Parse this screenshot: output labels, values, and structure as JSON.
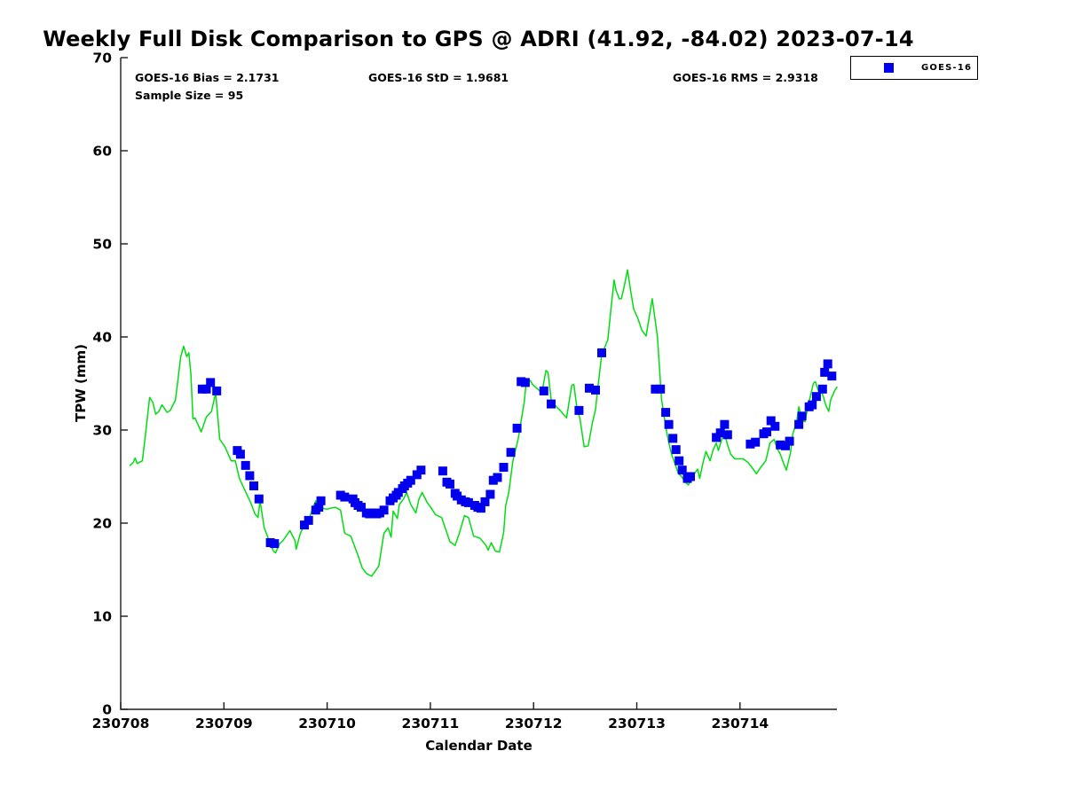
{
  "figure": {
    "stats": {
      "bias_label": "GOES-16 Bias = 2.1731",
      "std_label": "GOES-16 StD = 1.9681",
      "rms_label": "GOES-16 RMS = 2.9318",
      "sample_label": "Sample Size = 95"
    },
    "legend": {
      "entries": [
        {
          "label": "GOES-16",
          "marker": "square",
          "color": "#0000EE"
        }
      ]
    }
  },
  "chart_data": {
    "type": "line",
    "title": "Weekly Full Disk Comparison to GPS @ ADRI (41.92, -84.02) 2023-07-14",
    "xlabel": "Calendar Date",
    "ylabel": "TPW (mm)",
    "x_tick_labels": [
      "230708",
      "230709",
      "230710",
      "230711",
      "230712",
      "230713",
      "230714"
    ],
    "x_unit_note": "x values are days since 230708 00:00 UTC",
    "x_range_days": [
      0,
      6.94
    ],
    "ylim": [
      0,
      70
    ],
    "y_ticks": [
      0,
      10,
      20,
      30,
      40,
      50,
      60,
      70
    ],
    "grid": false,
    "legend_position": "top-right-outside",
    "stats": {
      "bias": 2.1731,
      "std": 1.9681,
      "rms": 2.9318,
      "sample_size": 95
    },
    "series": [
      {
        "name": "GPS",
        "type": "line",
        "color": "#00DD11",
        "points": [
          [
            0.09,
            26.2
          ],
          [
            0.12,
            26.5
          ],
          [
            0.14,
            27.0
          ],
          [
            0.16,
            26.4
          ],
          [
            0.21,
            26.7
          ],
          [
            0.24,
            29.5
          ],
          [
            0.28,
            33.5
          ],
          [
            0.31,
            33.0
          ],
          [
            0.34,
            31.7
          ],
          [
            0.37,
            32.0
          ],
          [
            0.4,
            32.7
          ],
          [
            0.45,
            31.9
          ],
          [
            0.48,
            32.1
          ],
          [
            0.53,
            33.2
          ],
          [
            0.55,
            35.0
          ],
          [
            0.58,
            37.8
          ],
          [
            0.61,
            39.0
          ],
          [
            0.64,
            37.9
          ],
          [
            0.66,
            38.3
          ],
          [
            0.68,
            36.0
          ],
          [
            0.7,
            31.2
          ],
          [
            0.72,
            31.3
          ],
          [
            0.78,
            29.8
          ],
          [
            0.83,
            31.4
          ],
          [
            0.88,
            32.0
          ],
          [
            0.92,
            34.0
          ],
          [
            0.96,
            29.0
          ],
          [
            1.01,
            28.2
          ],
          [
            1.07,
            26.7
          ],
          [
            1.11,
            26.7
          ],
          [
            1.15,
            24.8
          ],
          [
            1.2,
            23.6
          ],
          [
            1.26,
            22.2
          ],
          [
            1.3,
            21.0
          ],
          [
            1.33,
            20.6
          ],
          [
            1.35,
            22.4
          ],
          [
            1.39,
            19.5
          ],
          [
            1.44,
            18.1
          ],
          [
            1.48,
            17.0
          ],
          [
            1.5,
            16.8
          ],
          [
            1.54,
            17.8
          ],
          [
            1.57,
            18.1
          ],
          [
            1.64,
            19.2
          ],
          [
            1.69,
            18.1
          ],
          [
            1.7,
            17.2
          ],
          [
            1.74,
            18.9
          ],
          [
            1.78,
            19.8
          ],
          [
            1.82,
            20.3
          ],
          [
            1.86,
            21.6
          ],
          [
            1.89,
            22.4
          ],
          [
            1.91,
            21.1
          ],
          [
            1.93,
            22.5
          ],
          [
            1.95,
            21.6
          ],
          [
            2.0,
            21.5
          ],
          [
            2.03,
            21.6
          ],
          [
            2.08,
            21.7
          ],
          [
            2.13,
            21.4
          ],
          [
            2.17,
            18.9
          ],
          [
            2.23,
            18.6
          ],
          [
            2.3,
            16.5
          ],
          [
            2.34,
            15.2
          ],
          [
            2.38,
            14.6
          ],
          [
            2.43,
            14.3
          ],
          [
            2.47,
            14.9
          ],
          [
            2.5,
            15.4
          ],
          [
            2.55,
            18.9
          ],
          [
            2.59,
            19.5
          ],
          [
            2.62,
            18.5
          ],
          [
            2.64,
            21.3
          ],
          [
            2.68,
            20.5
          ],
          [
            2.7,
            22.0
          ],
          [
            2.74,
            22.6
          ],
          [
            2.77,
            23.3
          ],
          [
            2.81,
            22.0
          ],
          [
            2.86,
            21.1
          ],
          [
            2.89,
            22.6
          ],
          [
            2.92,
            23.3
          ],
          [
            2.97,
            22.2
          ],
          [
            3.01,
            21.6
          ],
          [
            3.05,
            20.9
          ],
          [
            3.11,
            20.6
          ],
          [
            3.15,
            19.3
          ],
          [
            3.19,
            18.0
          ],
          [
            3.24,
            17.6
          ],
          [
            3.28,
            18.9
          ],
          [
            3.33,
            20.8
          ],
          [
            3.37,
            20.6
          ],
          [
            3.42,
            18.6
          ],
          [
            3.48,
            18.4
          ],
          [
            3.54,
            17.6
          ],
          [
            3.56,
            17.1
          ],
          [
            3.59,
            17.9
          ],
          [
            3.63,
            17.0
          ],
          [
            3.67,
            16.9
          ],
          [
            3.71,
            19.0
          ],
          [
            3.73,
            21.9
          ],
          [
            3.76,
            23.3
          ],
          [
            3.8,
            26.7
          ],
          [
            3.85,
            29.0
          ],
          [
            3.88,
            31.0
          ],
          [
            3.91,
            33.0
          ],
          [
            3.93,
            35.3
          ],
          [
            3.97,
            35.3
          ],
          [
            3.99,
            34.9
          ],
          [
            4.04,
            34.4
          ],
          [
            4.08,
            34.0
          ],
          [
            4.12,
            36.4
          ],
          [
            4.14,
            36.2
          ],
          [
            4.17,
            33.3
          ],
          [
            4.19,
            32.9
          ],
          [
            4.23,
            32.4
          ],
          [
            4.25,
            32.2
          ],
          [
            4.29,
            31.7
          ],
          [
            4.32,
            31.3
          ],
          [
            4.37,
            34.8
          ],
          [
            4.39,
            34.9
          ],
          [
            4.42,
            32.4
          ],
          [
            4.45,
            31.2
          ],
          [
            4.49,
            28.2
          ],
          [
            4.53,
            28.3
          ],
          [
            4.57,
            30.8
          ],
          [
            4.6,
            32.2
          ],
          [
            4.62,
            34.3
          ],
          [
            4.66,
            38.1
          ],
          [
            4.72,
            39.7
          ],
          [
            4.75,
            43.0
          ],
          [
            4.78,
            46.1
          ],
          [
            4.8,
            45.0
          ],
          [
            4.83,
            44.1
          ],
          [
            4.85,
            44.1
          ],
          [
            4.88,
            45.5
          ],
          [
            4.91,
            47.2
          ],
          [
            4.94,
            45.0
          ],
          [
            4.97,
            43.0
          ],
          [
            5.01,
            42.0
          ],
          [
            5.05,
            40.7
          ],
          [
            5.09,
            40.1
          ],
          [
            5.15,
            44.1
          ],
          [
            5.2,
            40.0
          ],
          [
            5.24,
            33.3
          ],
          [
            5.27,
            31.1
          ],
          [
            5.29,
            29.8
          ],
          [
            5.31,
            28.6
          ],
          [
            5.34,
            27.3
          ],
          [
            5.37,
            26.4
          ],
          [
            5.4,
            25.4
          ],
          [
            5.44,
            24.9
          ],
          [
            5.48,
            24.3
          ],
          [
            5.5,
            24.1
          ],
          [
            5.54,
            25.0
          ],
          [
            5.57,
            25.5
          ],
          [
            5.59,
            25.8
          ],
          [
            5.61,
            24.8
          ],
          [
            5.64,
            26.4
          ],
          [
            5.67,
            27.7
          ],
          [
            5.71,
            26.7
          ],
          [
            5.74,
            27.9
          ],
          [
            5.77,
            28.6
          ],
          [
            5.79,
            27.8
          ],
          [
            5.83,
            29.2
          ],
          [
            5.85,
            29.6
          ],
          [
            5.88,
            28.4
          ],
          [
            5.91,
            27.4
          ],
          [
            5.95,
            26.9
          ],
          [
            5.99,
            26.9
          ],
          [
            6.03,
            26.9
          ],
          [
            6.08,
            26.5
          ],
          [
            6.12,
            25.9
          ],
          [
            6.16,
            25.3
          ],
          [
            6.2,
            26.0
          ],
          [
            6.25,
            26.7
          ],
          [
            6.29,
            28.6
          ],
          [
            6.33,
            29.0
          ],
          [
            6.36,
            28.0
          ],
          [
            6.39,
            27.4
          ],
          [
            6.43,
            26.2
          ],
          [
            6.45,
            25.7
          ],
          [
            6.49,
            27.6
          ],
          [
            6.51,
            29.5
          ],
          [
            6.55,
            31.0
          ],
          [
            6.57,
            32.5
          ],
          [
            6.6,
            31.0
          ],
          [
            6.63,
            30.9
          ],
          [
            6.66,
            32.7
          ],
          [
            6.69,
            34.0
          ],
          [
            6.71,
            35.0
          ],
          [
            6.73,
            35.2
          ],
          [
            6.76,
            34.2
          ],
          [
            6.78,
            34.5
          ],
          [
            6.81,
            33.5
          ],
          [
            6.83,
            32.7
          ],
          [
            6.86,
            32.0
          ],
          [
            6.88,
            33.3
          ],
          [
            6.92,
            34.3
          ],
          [
            6.94,
            34.6
          ]
        ]
      },
      {
        "name": "GOES-16",
        "type": "scatter",
        "marker": "square",
        "color": "#0000EE",
        "points": [
          [
            0.79,
            34.4
          ],
          [
            0.83,
            34.4
          ],
          [
            0.87,
            35.1
          ],
          [
            0.93,
            34.2
          ],
          [
            1.13,
            27.8
          ],
          [
            1.16,
            27.4
          ],
          [
            1.21,
            26.2
          ],
          [
            1.25,
            25.1
          ],
          [
            1.29,
            24.0
          ],
          [
            1.34,
            22.6
          ],
          [
            1.45,
            17.9
          ],
          [
            1.49,
            17.8
          ],
          [
            1.78,
            19.8
          ],
          [
            1.82,
            20.3
          ],
          [
            1.89,
            21.4
          ],
          [
            1.92,
            21.7
          ],
          [
            1.94,
            22.4
          ],
          [
            2.13,
            23.0
          ],
          [
            2.17,
            22.8
          ],
          [
            2.25,
            22.6
          ],
          [
            2.27,
            22.2
          ],
          [
            2.3,
            21.9
          ],
          [
            2.33,
            21.7
          ],
          [
            2.38,
            21.1
          ],
          [
            2.41,
            21.0
          ],
          [
            2.44,
            21.1
          ],
          [
            2.48,
            21.0
          ],
          [
            2.51,
            21.1
          ],
          [
            2.55,
            21.4
          ],
          [
            2.61,
            22.4
          ],
          [
            2.64,
            22.7
          ],
          [
            2.67,
            23.0
          ],
          [
            2.69,
            23.3
          ],
          [
            2.73,
            23.7
          ],
          [
            2.75,
            24.0
          ],
          [
            2.78,
            24.3
          ],
          [
            2.81,
            24.6
          ],
          [
            2.87,
            25.2
          ],
          [
            2.91,
            25.7
          ],
          [
            3.12,
            25.6
          ],
          [
            3.16,
            24.4
          ],
          [
            3.19,
            24.2
          ],
          [
            3.24,
            23.2
          ],
          [
            3.26,
            22.9
          ],
          [
            3.3,
            22.5
          ],
          [
            3.34,
            22.3
          ],
          [
            3.37,
            22.2
          ],
          [
            3.43,
            21.9
          ],
          [
            3.46,
            21.7
          ],
          [
            3.49,
            21.6
          ],
          [
            3.53,
            22.3
          ],
          [
            3.58,
            23.1
          ],
          [
            3.61,
            24.6
          ],
          [
            3.65,
            24.9
          ],
          [
            3.71,
            26.0
          ],
          [
            3.78,
            27.6
          ],
          [
            3.84,
            30.2
          ],
          [
            3.88,
            35.2
          ],
          [
            3.92,
            35.1
          ],
          [
            4.1,
            34.2
          ],
          [
            4.17,
            32.8
          ],
          [
            4.44,
            32.1
          ],
          [
            4.54,
            34.5
          ],
          [
            4.6,
            34.3
          ],
          [
            4.66,
            38.3
          ],
          [
            5.18,
            34.4
          ],
          [
            5.23,
            34.4
          ],
          [
            5.28,
            31.9
          ],
          [
            5.31,
            30.6
          ],
          [
            5.35,
            29.1
          ],
          [
            5.38,
            27.9
          ],
          [
            5.41,
            26.7
          ],
          [
            5.44,
            25.7
          ],
          [
            5.49,
            24.8
          ],
          [
            5.52,
            25.0
          ],
          [
            5.77,
            29.2
          ],
          [
            5.81,
            29.7
          ],
          [
            5.85,
            30.6
          ],
          [
            5.88,
            29.5
          ],
          [
            6.1,
            28.5
          ],
          [
            6.15,
            28.7
          ],
          [
            6.23,
            29.6
          ],
          [
            6.26,
            29.8
          ],
          [
            6.3,
            31.0
          ],
          [
            6.34,
            30.4
          ],
          [
            6.39,
            28.4
          ],
          [
            6.44,
            28.3
          ],
          [
            6.48,
            28.8
          ],
          [
            6.57,
            30.6
          ],
          [
            6.6,
            31.5
          ],
          [
            6.67,
            32.5
          ],
          [
            6.7,
            32.7
          ],
          [
            6.74,
            33.6
          ],
          [
            6.8,
            34.4
          ],
          [
            6.82,
            36.2
          ],
          [
            6.85,
            37.1
          ],
          [
            6.89,
            35.8
          ]
        ]
      }
    ]
  }
}
